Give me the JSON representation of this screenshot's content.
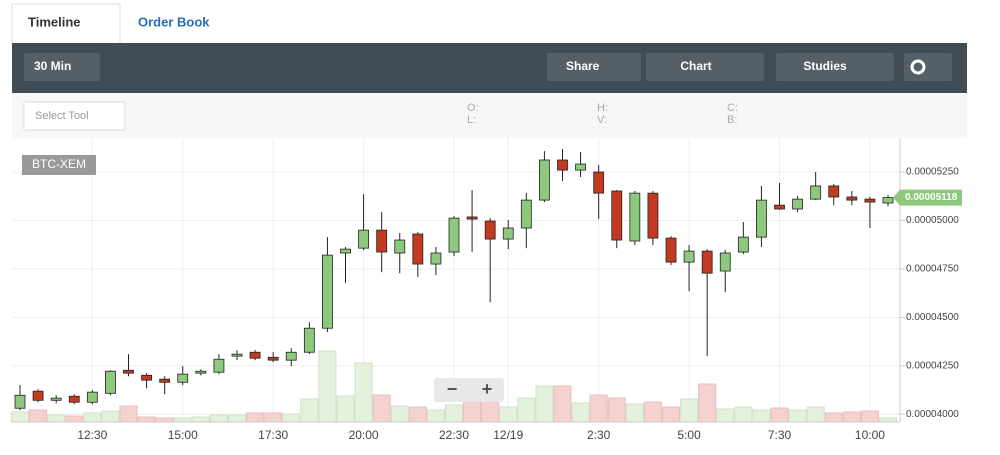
{
  "ui": {
    "tabs": [
      "Timeline",
      "Order Book"
    ],
    "interval": "30 Min",
    "buttons": [
      "Share",
      "Chart",
      "Studies"
    ],
    "select_tool": "Select Tool",
    "ohlc_labels": [
      "O:",
      "L:",
      "H:",
      "V:",
      "C:",
      "B:"
    ],
    "symbol": "BTC-XEM",
    "zoom": [
      "−",
      "+"
    ]
  },
  "chart_data": {
    "type": "candlestick",
    "categories": [
      null,
      null,
      null,
      null,
      "12:30",
      null,
      null,
      null,
      null,
      "15:00",
      null,
      null,
      null,
      null,
      "17:30",
      null,
      null,
      null,
      null,
      "20:00",
      null,
      null,
      null,
      null,
      "22:30",
      null,
      null,
      "12/19",
      null,
      null,
      null,
      null,
      "2:30",
      null,
      null,
      null,
      null,
      "5:00",
      null,
      null,
      null,
      null,
      "7:30",
      null,
      null,
      null,
      null,
      "10:00",
      null
    ],
    "open": [
      4.031e-05,
      4.119e-05,
      4.072e-05,
      4.093e-05,
      4.062e-05,
      4.108e-05,
      4.227e-05,
      4.201e-05,
      4.181e-05,
      4.165e-05,
      4.212e-05,
      4.217e-05,
      4.3e-05,
      4.32e-05,
      4.294e-05,
      4.279e-05,
      4.32e-05,
      4.444e-05,
      4.832e-05,
      4.857e-05,
      4.95e-05,
      4.832e-05,
      4.93e-05,
      4.775e-05,
      4.837e-05,
      5.018e-05,
      4.997e-05,
      4.904e-05,
      4.961e-05,
      5.105e-05,
      5.312e-05,
      5.26e-05,
      5.25e-05,
      5.152e-05,
      4.894e-05,
      5.141e-05,
      4.909e-05,
      4.785e-05,
      4.842e-05,
      4.739e-05,
      4.837e-05,
      4.914e-05,
      5.079e-05,
      5.059e-05,
      5.11e-05,
      5.178e-05,
      5.121e-05,
      5.11e-05,
      5.09e-05
    ],
    "high": [
      4.15e-05,
      4.129e-05,
      4.098e-05,
      4.103e-05,
      4.124e-05,
      4.227e-05,
      4.31e-05,
      4.212e-05,
      4.196e-05,
      4.248e-05,
      4.232e-05,
      4.31e-05,
      4.331e-05,
      4.331e-05,
      4.32e-05,
      4.341e-05,
      4.475e-05,
      4.914e-05,
      4.863e-05,
      5.136e-05,
      5.043e-05,
      4.935e-05,
      4.94e-05,
      4.863e-05,
      5.023e-05,
      5.157e-05,
      5.012e-05,
      5.002e-05,
      5.141e-05,
      5.358e-05,
      5.369e-05,
      5.353e-05,
      5.286e-05,
      5.157e-05,
      5.152e-05,
      5.152e-05,
      4.919e-05,
      4.873e-05,
      4.852e-05,
      4.847e-05,
      4.992e-05,
      5.178e-05,
      5.193e-05,
      5.126e-05,
      5.25e-05,
      5.188e-05,
      5.152e-05,
      5.121e-05,
      5.131e-05
    ],
    "low": [
      4.021e-05,
      4.062e-05,
      4.057e-05,
      4.052e-05,
      4.052e-05,
      4.098e-05,
      4.196e-05,
      4.134e-05,
      4.103e-05,
      4.15e-05,
      4.201e-05,
      4.207e-05,
      4.279e-05,
      4.279e-05,
      4.269e-05,
      4.248e-05,
      4.31e-05,
      4.424e-05,
      4.677e-05,
      4.847e-05,
      4.733e-05,
      4.728e-05,
      4.708e-05,
      4.718e-05,
      4.816e-05,
      4.837e-05,
      4.578e-05,
      4.852e-05,
      4.857e-05,
      5.095e-05,
      5.203e-05,
      5.224e-05,
      5.007e-05,
      4.857e-05,
      4.873e-05,
      4.873e-05,
      4.77e-05,
      4.635e-05,
      4.3e-05,
      4.63e-05,
      4.826e-05,
      4.863e-05,
      5.054e-05,
      5.043e-05,
      5.105e-05,
      5.079e-05,
      5.079e-05,
      4.961e-05,
      5.074e-05
    ],
    "close": [
      4.098e-05,
      4.072e-05,
      4.083e-05,
      4.062e-05,
      4.114e-05,
      4.222e-05,
      4.212e-05,
      4.176e-05,
      4.165e-05,
      4.207e-05,
      4.222e-05,
      4.284e-05,
      4.31e-05,
      4.289e-05,
      4.279e-05,
      4.32e-05,
      4.444e-05,
      4.821e-05,
      4.852e-05,
      4.95e-05,
      4.837e-05,
      4.899e-05,
      4.775e-05,
      4.832e-05,
      5.012e-05,
      5.007e-05,
      4.904e-05,
      4.961e-05,
      5.105e-05,
      5.312e-05,
      5.26e-05,
      5.291e-05,
      5.141e-05,
      4.899e-05,
      5.141e-05,
      4.909e-05,
      4.785e-05,
      4.842e-05,
      4.728e-05,
      4.832e-05,
      4.914e-05,
      5.105e-05,
      5.059e-05,
      5.11e-05,
      5.178e-05,
      5.121e-05,
      5.105e-05,
      5.095e-05,
      5.118e-05
    ],
    "volume": [
      10,
      12,
      7,
      6,
      9,
      11,
      16,
      5,
      4,
      4,
      5,
      7,
      7,
      9,
      9,
      8,
      23,
      71,
      26,
      59,
      27,
      16,
      15,
      12,
      17,
      25,
      25,
      15,
      24,
      36,
      36,
      19,
      27,
      24,
      18,
      20,
      15,
      23,
      38,
      13,
      15,
      12,
      14,
      12,
      15,
      9,
      10,
      11,
      4
    ],
    "volume_lim": [
      0,
      100
    ],
    "up_color": "#8cc97c",
    "down_color": "#c23a20",
    "volume_up_color": "#e4f1dd",
    "volume_down_color": "#f4d2d2",
    "last_price_label": "0.00005118",
    "ylim": [
      3.96e-05,
      5.41e-05
    ],
    "yticks": [
      {
        "value": 4e-05,
        "label": "0.00004000"
      },
      {
        "value": 4.25e-05,
        "label": "0.00004250"
      },
      {
        "value": 4.5e-05,
        "label": "0.00004500"
      },
      {
        "value": 4.75e-05,
        "label": "0.00004750"
      },
      {
        "value": 5e-05,
        "label": "0.00005000"
      },
      {
        "value": 5.25e-05,
        "label": "0.00005250"
      }
    ],
    "grid": true
  }
}
